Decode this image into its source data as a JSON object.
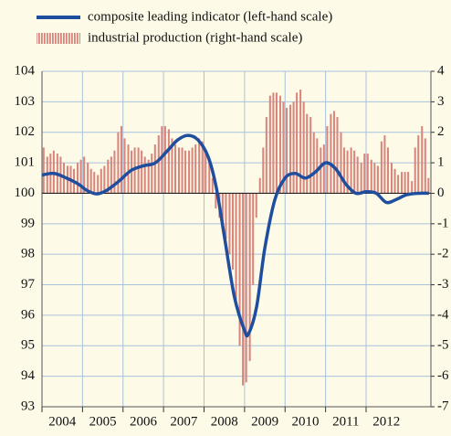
{
  "chart_data": {
    "type": "bar-line",
    "series": [
      {
        "name": "composite leading indicator (left-hand scale)",
        "type": "line",
        "axis": "y",
        "color": "#1f4e9e",
        "x": [
          2004.0,
          2004.3,
          2004.6,
          2004.9,
          2005.1,
          2005.35,
          2005.6,
          2005.9,
          2006.2,
          2006.5,
          2006.8,
          2007.1,
          2007.35,
          2007.6,
          2007.85,
          2008.1,
          2008.3,
          2008.5,
          2008.75,
          2009.0,
          2009.1,
          2009.3,
          2009.5,
          2009.75,
          2010.0,
          2010.25,
          2010.5,
          2010.75,
          2011.0,
          2011.25,
          2011.5,
          2011.75,
          2012.0,
          2012.25,
          2012.5,
          2012.75,
          2013.0,
          2013.3,
          2013.55
        ],
        "values": [
          100.6,
          100.65,
          100.5,
          100.3,
          100.1,
          99.98,
          100.1,
          100.4,
          100.75,
          100.9,
          101.0,
          101.4,
          101.75,
          101.9,
          101.75,
          101.2,
          100.2,
          98.6,
          96.6,
          95.5,
          95.4,
          96.3,
          98.2,
          99.8,
          100.5,
          100.65,
          100.5,
          100.7,
          101.0,
          100.8,
          100.3,
          100.0,
          100.05,
          100.0,
          99.7,
          99.8,
          99.95,
          100.0,
          100.0
        ]
      },
      {
        "name": "industrial production (right-hand scale)",
        "type": "bar",
        "axis": "y2",
        "color": "#d9857c",
        "x": [
          2004.04,
          2004.13,
          2004.21,
          2004.29,
          2004.38,
          2004.46,
          2004.54,
          2004.63,
          2004.71,
          2004.79,
          2004.88,
          2004.96,
          2005.04,
          2005.13,
          2005.21,
          2005.29,
          2005.38,
          2005.46,
          2005.54,
          2005.63,
          2005.71,
          2005.79,
          2005.88,
          2005.96,
          2006.04,
          2006.13,
          2006.21,
          2006.29,
          2006.38,
          2006.46,
          2006.54,
          2006.63,
          2006.71,
          2006.79,
          2006.88,
          2006.96,
          2007.04,
          2007.13,
          2007.21,
          2007.29,
          2007.38,
          2007.46,
          2007.54,
          2007.63,
          2007.71,
          2007.79,
          2007.88,
          2007.96,
          2008.04,
          2008.13,
          2008.21,
          2008.29,
          2008.38,
          2008.46,
          2008.54,
          2008.63,
          2008.71,
          2008.79,
          2008.88,
          2008.96,
          2009.04,
          2009.13,
          2009.21,
          2009.29,
          2009.38,
          2009.46,
          2009.54,
          2009.63,
          2009.71,
          2009.79,
          2009.88,
          2009.96,
          2010.04,
          2010.13,
          2010.21,
          2010.29,
          2010.38,
          2010.46,
          2010.54,
          2010.63,
          2010.71,
          2010.79,
          2010.88,
          2010.96,
          2011.04,
          2011.13,
          2011.21,
          2011.29,
          2011.38,
          2011.46,
          2011.54,
          2011.63,
          2011.71,
          2011.79,
          2011.88,
          2011.96,
          2012.04,
          2012.13,
          2012.21,
          2012.29,
          2012.38,
          2012.46,
          2012.54,
          2012.63,
          2012.71,
          2012.79,
          2012.88,
          2012.96,
          2013.04,
          2013.13,
          2013.21,
          2013.29,
          2013.38,
          2013.46,
          2013.54
        ],
        "values": [
          1.5,
          1.2,
          1.3,
          1.4,
          1.3,
          1.2,
          1.0,
          0.9,
          0.9,
          0.8,
          1.0,
          1.1,
          1.2,
          1.0,
          0.8,
          0.7,
          0.6,
          0.8,
          0.9,
          1.1,
          1.2,
          1.4,
          2.0,
          2.2,
          1.8,
          1.6,
          1.4,
          1.5,
          1.5,
          1.4,
          1.2,
          1.1,
          1.3,
          1.6,
          1.9,
          2.2,
          2.2,
          2.1,
          1.8,
          1.6,
          1.5,
          1.5,
          1.4,
          1.4,
          1.5,
          1.6,
          1.8,
          1.7,
          1.3,
          1.0,
          0.5,
          -0.5,
          -0.8,
          -1.0,
          -1.5,
          -2.0,
          -2.5,
          -3.5,
          -5.0,
          -6.3,
          -6.2,
          -5.5,
          -3.0,
          -0.8,
          0.5,
          1.5,
          2.5,
          3.2,
          3.3,
          3.3,
          3.2,
          3.0,
          2.8,
          2.9,
          3.0,
          3.3,
          3.4,
          3.0,
          2.6,
          2.5,
          2.0,
          1.8,
          1.5,
          1.6,
          2.2,
          2.6,
          2.7,
          2.5,
          2.0,
          1.5,
          1.4,
          1.5,
          1.4,
          1.2,
          1.0,
          1.3,
          1.3,
          1.1,
          1.0,
          0.9,
          1.7,
          1.9,
          1.5,
          1.0,
          0.8,
          0.6,
          0.7,
          0.7,
          0.7,
          0.4,
          1.5,
          1.9,
          2.2,
          1.8,
          0.5
        ]
      }
    ],
    "xlim": [
      2004.0,
      2013.6
    ],
    "xticks": [
      2004,
      2005,
      2006,
      2007,
      2008,
      2009,
      2010,
      2011,
      2012
    ],
    "ylim": [
      93,
      104
    ],
    "yticks": [
      93,
      94,
      95,
      96,
      97,
      98,
      99,
      100,
      101,
      102,
      103,
      104
    ],
    "y2lim": [
      -7,
      4
    ],
    "y2ticks": [
      -7,
      -6,
      -5,
      -4,
      -3,
      -2,
      -1,
      0,
      1,
      2,
      3,
      4
    ],
    "grid": true,
    "legend": "top-left"
  }
}
